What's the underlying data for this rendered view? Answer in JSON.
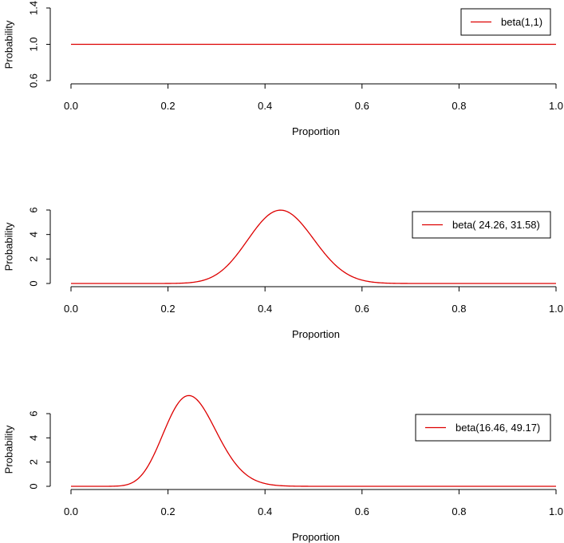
{
  "colors": {
    "curve": "#dd0000",
    "axis": "#000000"
  },
  "chart_data": [
    {
      "type": "line",
      "xlabel": "Proportion",
      "ylabel": "Probability",
      "xlim": [
        0,
        1
      ],
      "ylim": [
        0.6,
        1.4
      ],
      "x_ticks": [
        "0.0",
        "0.2",
        "0.4",
        "0.6",
        "0.8",
        "1.0"
      ],
      "y_ticks": [
        "0.6",
        "1.0",
        "1.4"
      ],
      "legend": {
        "label": "beta(1,1)",
        "placement": "top-right"
      },
      "series": [
        {
          "name": "beta(1,1)",
          "distribution": "beta",
          "alpha": 1,
          "beta": 1
        }
      ]
    },
    {
      "type": "line",
      "xlabel": "Proportion",
      "ylabel": "Probability",
      "xlim": [
        0,
        1
      ],
      "ylim": [
        0,
        6
      ],
      "x_ticks": [
        "0.0",
        "0.2",
        "0.4",
        "0.6",
        "0.8",
        "1.0"
      ],
      "y_ticks": [
        "0",
        "2",
        "4",
        "6"
      ],
      "legend": {
        "label": "beta( 24.26, 31.58)",
        "placement": "top-right"
      },
      "series": [
        {
          "name": "beta( 24.26, 31.58)",
          "distribution": "beta",
          "alpha": 24.26,
          "beta": 31.58
        }
      ]
    },
    {
      "type": "line",
      "xlabel": "Proportion",
      "ylabel": "Probability",
      "xlim": [
        0,
        1
      ],
      "ylim": [
        0,
        6
      ],
      "x_ticks": [
        "0.0",
        "0.2",
        "0.4",
        "0.6",
        "0.8",
        "1.0"
      ],
      "y_ticks": [
        "0",
        "2",
        "4",
        "6"
      ],
      "legend": {
        "label": "beta(16.46, 49.17)",
        "placement": "top-right"
      },
      "series": [
        {
          "name": "beta(16.46, 49.17)",
          "distribution": "beta",
          "alpha": 16.46,
          "beta": 49.17
        }
      ]
    }
  ]
}
